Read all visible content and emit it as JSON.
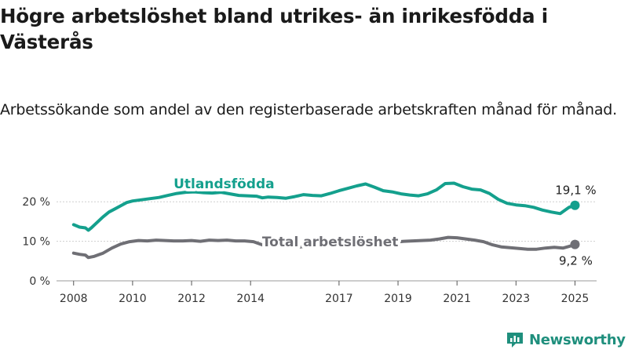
{
  "title": "Högre arbetslöshet bland utrikes- än inrikesfödda i Västerås",
  "subtitle": "Arbetssökande som andel av den registerbaserade arbetskraften månad för månad.",
  "brand": "Newsworthy",
  "colors": {
    "foreign": "#14a08d",
    "total": "#6f6f75",
    "grid": "#cfcfcf"
  },
  "chart_data": {
    "type": "line",
    "ylim": [
      0,
      25
    ],
    "xlim": [
      2007.9,
      2025.6
    ],
    "y_ticks": [
      {
        "value": 0,
        "label": "0 %"
      },
      {
        "value": 10,
        "label": "10 %"
      },
      {
        "value": 20,
        "label": "20 %"
      }
    ],
    "x_ticks": [
      {
        "value": 2008,
        "label": "2008"
      },
      {
        "value": 2010,
        "label": "2010"
      },
      {
        "value": 2012,
        "label": "2012"
      },
      {
        "value": 2014,
        "label": "2014"
      },
      {
        "value": 2017,
        "label": "2017"
      },
      {
        "value": 2019,
        "label": "2019"
      },
      {
        "value": 2021,
        "label": "2021"
      },
      {
        "value": 2023,
        "label": "2023"
      },
      {
        "value": 2025,
        "label": "2025"
      }
    ],
    "grid": "horizontal",
    "series": [
      {
        "name": "Utlandsfödda",
        "key": "foreign",
        "end_label": "19,1 %",
        "x": [
          2008.0,
          2008.2,
          2008.4,
          2008.5,
          2008.6,
          2008.8,
          2009.0,
          2009.2,
          2009.4,
          2009.6,
          2009.8,
          2010.0,
          2010.3,
          2010.6,
          2010.9,
          2011.2,
          2011.5,
          2011.8,
          2012.1,
          2012.4,
          2012.7,
          2013.0,
          2013.3,
          2013.6,
          2013.9,
          2014.2,
          2014.4,
          2014.6,
          2014.9,
          2015.2,
          2015.5,
          2015.8,
          2016.1,
          2016.4,
          2016.7,
          2017.0,
          2017.3,
          2017.6,
          2017.9,
          2018.2,
          2018.5,
          2018.8,
          2019.1,
          2019.4,
          2019.7,
          2020.0,
          2020.3,
          2020.6,
          2020.9,
          2021.2,
          2021.5,
          2021.8,
          2022.1,
          2022.4,
          2022.7,
          2023.0,
          2023.3,
          2023.6,
          2023.9,
          2024.2,
          2024.5,
          2024.8,
          2025.0
        ],
        "y": [
          14.2,
          13.6,
          13.4,
          12.8,
          13.4,
          14.8,
          16.2,
          17.4,
          18.2,
          19.0,
          19.8,
          20.2,
          20.5,
          20.8,
          21.1,
          21.6,
          22.1,
          22.4,
          22.5,
          22.3,
          22.2,
          22.4,
          22.0,
          21.6,
          21.5,
          21.4,
          21.0,
          21.2,
          21.1,
          20.9,
          21.3,
          21.8,
          21.6,
          21.5,
          22.1,
          22.8,
          23.4,
          24.0,
          24.5,
          23.7,
          22.8,
          22.5,
          22.0,
          21.7,
          21.5,
          22.0,
          23.0,
          24.6,
          24.7,
          23.8,
          23.2,
          23.0,
          22.1,
          20.6,
          19.6,
          19.2,
          19.0,
          18.6,
          17.9,
          17.4,
          17.0,
          18.6,
          19.1
        ]
      },
      {
        "name": "Total arbetslöshet",
        "key": "total",
        "end_label": "9,2 %",
        "x": [
          2008.0,
          2008.2,
          2008.4,
          2008.5,
          2008.7,
          2009.0,
          2009.3,
          2009.6,
          2009.9,
          2010.2,
          2010.5,
          2010.8,
          2011.1,
          2011.4,
          2011.7,
          2012.0,
          2012.3,
          2012.6,
          2012.9,
          2013.2,
          2013.5,
          2013.8,
          2014.1,
          2014.4,
          2014.7,
          2015.0,
          2015.3,
          2015.6,
          2015.9,
          2016.2,
          2016.5,
          2016.8,
          2017.1,
          2017.4,
          2017.7,
          2018.0,
          2018.3,
          2018.6,
          2018.9,
          2019.2,
          2019.5,
          2019.8,
          2020.1,
          2020.4,
          2020.7,
          2021.0,
          2021.3,
          2021.6,
          2021.9,
          2022.2,
          2022.5,
          2022.8,
          2023.1,
          2023.4,
          2023.7,
          2024.0,
          2024.3,
          2024.6,
          2024.9,
          2025.0
        ],
        "y": [
          7.0,
          6.7,
          6.5,
          5.9,
          6.2,
          7.0,
          8.3,
          9.3,
          9.9,
          10.2,
          10.1,
          10.3,
          10.2,
          10.1,
          10.1,
          10.2,
          10.0,
          10.3,
          10.2,
          10.3,
          10.1,
          10.1,
          9.9,
          9.1,
          8.7,
          8.9,
          8.7,
          8.5,
          8.8,
          9.0,
          8.9,
          8.8,
          9.0,
          9.3,
          9.6,
          9.8,
          9.7,
          9.9,
          9.8,
          10.0,
          10.1,
          10.2,
          10.3,
          10.6,
          11.0,
          10.9,
          10.6,
          10.3,
          9.9,
          9.1,
          8.6,
          8.4,
          8.2,
          8.0,
          8.0,
          8.3,
          8.5,
          8.3,
          8.9,
          9.2
        ]
      }
    ],
    "annotations": [
      {
        "text": "Utlandsfödda",
        "series": "foreign",
        "x": 2013.1,
        "y": 23.4
      },
      {
        "text": "Total arbetslöshet",
        "series": "total",
        "x": 2016.7,
        "y": 8.7
      }
    ]
  }
}
